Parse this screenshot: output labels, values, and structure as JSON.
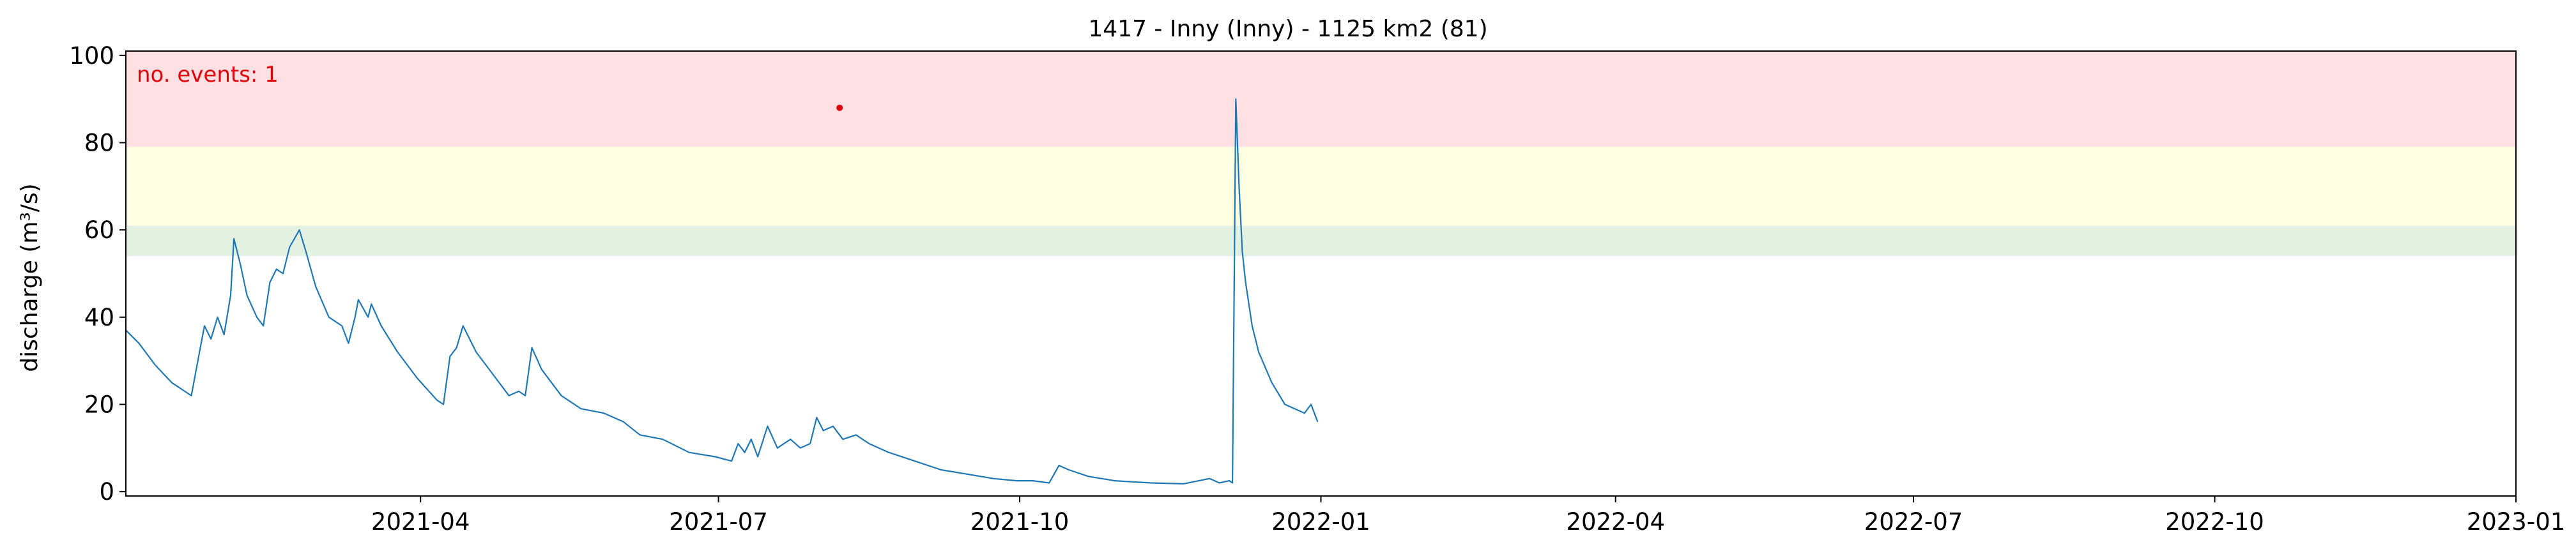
{
  "chart_data": {
    "type": "line",
    "title": "1417 - Inny (Inny) - 1125 km2 (81)",
    "xlabel": "",
    "ylabel": "discharge (m³/s)",
    "xlim": [
      "2021-01-01",
      "2023-01-01"
    ],
    "ylim": [
      -1,
      101
    ],
    "yticks": [
      "0",
      "20",
      "40",
      "60",
      "80",
      "100"
    ],
    "xticks": [
      {
        "date": "2021-04-01",
        "label": "2021-04"
      },
      {
        "date": "2021-07-01",
        "label": "2021-07"
      },
      {
        "date": "2021-10-01",
        "label": "2021-10"
      },
      {
        "date": "2022-01-01",
        "label": "2022-01"
      },
      {
        "date": "2022-04-01",
        "label": "2022-04"
      },
      {
        "date": "2022-07-01",
        "label": "2022-07"
      },
      {
        "date": "2022-10-01",
        "label": "2022-10"
      },
      {
        "date": "2023-01-01",
        "label": "2023-01"
      }
    ],
    "grid": false,
    "annotation": "no. events: 1",
    "threshold_bands": [
      {
        "name": "threshold-band-high",
        "from": 79,
        "to": 101,
        "color": "#ffe0e3"
      },
      {
        "name": "threshold-band-medium",
        "from": 61,
        "to": 79,
        "color": "#fefee2"
      },
      {
        "name": "threshold-band-low",
        "from": 54,
        "to": 61,
        "color": "#e3f1e3"
      }
    ],
    "events": [
      {
        "date": "2021-08-07",
        "value": 88
      }
    ],
    "series": [
      {
        "name": "discharge",
        "color": "#1f77b4",
        "points": [
          [
            "2021-01-01",
            37
          ],
          [
            "2021-01-05",
            34
          ],
          [
            "2021-01-10",
            29
          ],
          [
            "2021-01-15",
            25
          ],
          [
            "2021-01-19",
            23
          ],
          [
            "2021-01-21",
            22
          ],
          [
            "2021-01-23",
            30
          ],
          [
            "2021-01-25",
            38
          ],
          [
            "2021-01-27",
            35
          ],
          [
            "2021-01-29",
            40
          ],
          [
            "2021-01-31",
            36
          ],
          [
            "2021-02-02",
            45
          ],
          [
            "2021-02-03",
            58
          ],
          [
            "2021-02-05",
            52
          ],
          [
            "2021-02-07",
            45
          ],
          [
            "2021-02-10",
            40
          ],
          [
            "2021-02-12",
            38
          ],
          [
            "2021-02-14",
            48
          ],
          [
            "2021-02-16",
            51
          ],
          [
            "2021-02-18",
            50
          ],
          [
            "2021-02-20",
            56
          ],
          [
            "2021-02-23",
            60
          ],
          [
            "2021-02-25",
            55
          ],
          [
            "2021-02-28",
            47
          ],
          [
            "2021-03-04",
            40
          ],
          [
            "2021-03-08",
            38
          ],
          [
            "2021-03-10",
            34
          ],
          [
            "2021-03-12",
            40
          ],
          [
            "2021-03-13",
            44
          ],
          [
            "2021-03-16",
            40
          ],
          [
            "2021-03-17",
            43
          ],
          [
            "2021-03-20",
            38
          ],
          [
            "2021-03-25",
            32
          ],
          [
            "2021-03-31",
            26
          ],
          [
            "2021-04-06",
            21
          ],
          [
            "2021-04-08",
            20
          ],
          [
            "2021-04-10",
            31
          ],
          [
            "2021-04-12",
            33
          ],
          [
            "2021-04-14",
            38
          ],
          [
            "2021-04-18",
            32
          ],
          [
            "2021-04-24",
            26
          ],
          [
            "2021-04-28",
            22
          ],
          [
            "2021-05-01",
            23
          ],
          [
            "2021-05-03",
            22
          ],
          [
            "2021-05-05",
            33
          ],
          [
            "2021-05-08",
            28
          ],
          [
            "2021-05-14",
            22
          ],
          [
            "2021-05-20",
            19
          ],
          [
            "2021-05-27",
            18
          ],
          [
            "2021-06-02",
            16
          ],
          [
            "2021-06-07",
            13
          ],
          [
            "2021-06-14",
            12
          ],
          [
            "2021-06-22",
            9
          ],
          [
            "2021-06-30",
            8
          ],
          [
            "2021-07-05",
            7
          ],
          [
            "2021-07-07",
            11
          ],
          [
            "2021-07-09",
            9
          ],
          [
            "2021-07-11",
            12
          ],
          [
            "2021-07-13",
            8
          ],
          [
            "2021-07-16",
            15
          ],
          [
            "2021-07-19",
            10
          ],
          [
            "2021-07-23",
            12
          ],
          [
            "2021-07-26",
            10
          ],
          [
            "2021-07-29",
            11
          ],
          [
            "2021-07-31",
            17
          ],
          [
            "2021-08-02",
            14
          ],
          [
            "2021-08-05",
            15
          ],
          [
            "2021-08-08",
            12
          ],
          [
            "2021-08-12",
            13
          ],
          [
            "2021-08-16",
            11
          ],
          [
            "2021-08-22",
            9
          ],
          [
            "2021-08-30",
            7
          ],
          [
            "2021-09-07",
            5
          ],
          [
            "2021-09-15",
            4
          ],
          [
            "2021-09-23",
            3
          ],
          [
            "2021-09-30",
            2.5
          ],
          [
            "2021-10-05",
            2.5
          ],
          [
            "2021-10-10",
            2
          ],
          [
            "2021-10-13",
            6
          ],
          [
            "2021-10-16",
            5
          ],
          [
            "2021-10-22",
            3.5
          ],
          [
            "2021-10-30",
            2.5
          ],
          [
            "2021-11-10",
            2
          ],
          [
            "2021-11-20",
            1.8
          ],
          [
            "2021-11-28",
            3
          ],
          [
            "2021-12-01",
            2
          ],
          [
            "2021-12-04",
            2.5
          ],
          [
            "2021-12-05",
            2
          ],
          [
            "2021-12-06",
            90
          ],
          [
            "2021-12-07",
            70
          ],
          [
            "2021-12-08",
            55
          ],
          [
            "2021-12-09",
            48
          ],
          [
            "2021-12-11",
            38
          ],
          [
            "2021-12-13",
            32
          ],
          [
            "2021-12-17",
            25
          ],
          [
            "2021-12-21",
            20
          ],
          [
            "2021-12-27",
            18
          ],
          [
            "2021-12-29",
            20
          ],
          [
            "2021-12-31",
            16
          ]
        ]
      }
    ]
  }
}
